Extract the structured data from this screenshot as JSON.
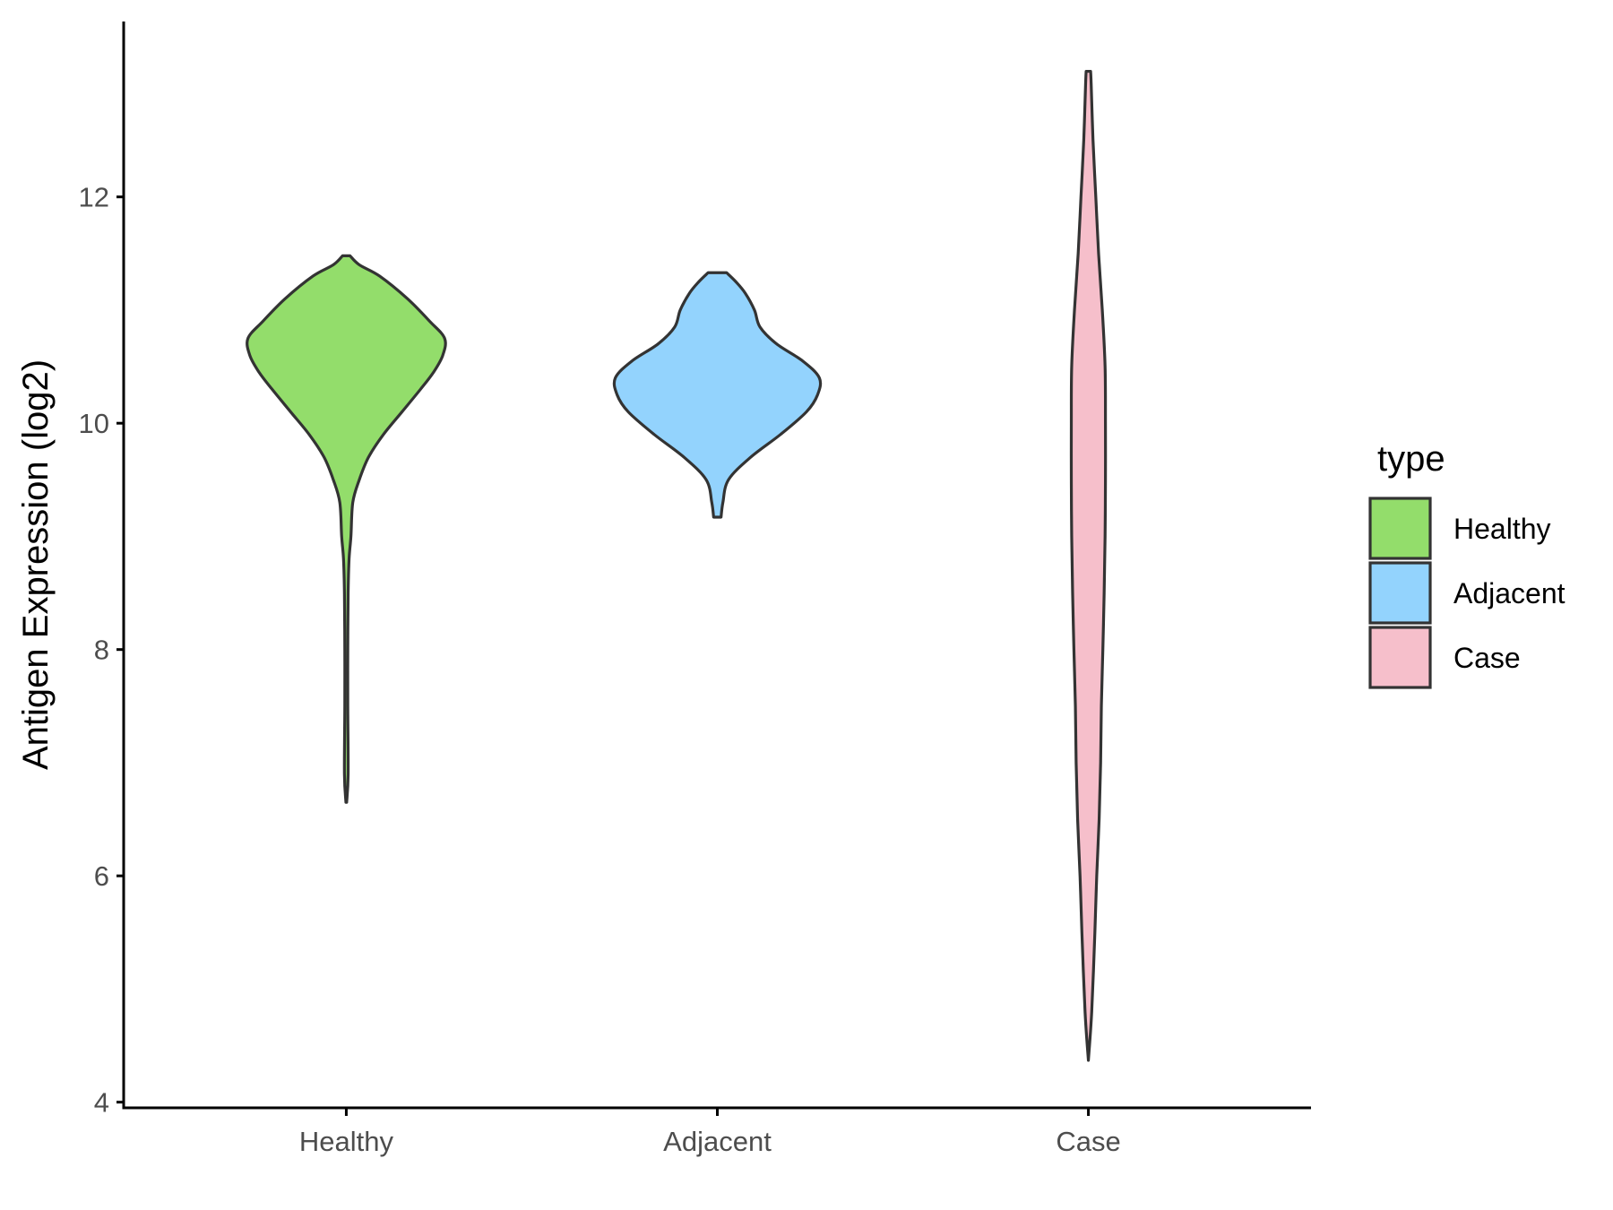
{
  "chart_data": {
    "type": "violin",
    "title": "",
    "xlabel": "",
    "ylabel": "Antigen Expression (log2)",
    "ylim": [
      3.95,
      13.55
    ],
    "yticks": [
      4,
      6,
      8,
      10,
      12
    ],
    "grid": false,
    "legend": {
      "title": "type",
      "position": "right",
      "entries": [
        {
          "label": "Healthy",
          "color": "#93dd6b"
        },
        {
          "label": "Adjacent",
          "color": "#93d3fd"
        },
        {
          "label": "Case",
          "color": "#f6bfcb"
        }
      ]
    },
    "categories": [
      "Healthy",
      "Adjacent",
      "Case"
    ],
    "series": [
      {
        "category": "Healthy",
        "color": "#93dd6b",
        "min": 6.65,
        "max": 11.48,
        "density_halfwidth": [
          [
            6.65,
            0.002
          ],
          [
            6.9,
            0.01
          ],
          [
            7.5,
            0.008
          ],
          [
            8.0,
            0.008
          ],
          [
            8.5,
            0.01
          ],
          [
            8.8,
            0.015
          ],
          [
            9.0,
            0.025
          ],
          [
            9.3,
            0.035
          ],
          [
            9.5,
            0.07
          ],
          [
            9.7,
            0.12
          ],
          [
            9.9,
            0.2
          ],
          [
            10.1,
            0.3
          ],
          [
            10.3,
            0.4
          ],
          [
            10.45,
            0.47
          ],
          [
            10.6,
            0.52
          ],
          [
            10.75,
            0.53
          ],
          [
            10.9,
            0.45
          ],
          [
            11.1,
            0.33
          ],
          [
            11.3,
            0.18
          ],
          [
            11.4,
            0.07
          ],
          [
            11.48,
            0.02
          ]
        ]
      },
      {
        "category": "Adjacent",
        "color": "#93d3fd",
        "min": 9.17,
        "max": 11.33,
        "density_halfwidth": [
          [
            9.17,
            0.02
          ],
          [
            9.3,
            0.03
          ],
          [
            9.5,
            0.06
          ],
          [
            9.7,
            0.18
          ],
          [
            9.9,
            0.34
          ],
          [
            10.1,
            0.48
          ],
          [
            10.25,
            0.54
          ],
          [
            10.4,
            0.55
          ],
          [
            10.55,
            0.46
          ],
          [
            10.7,
            0.32
          ],
          [
            10.85,
            0.23
          ],
          [
            11.0,
            0.2
          ],
          [
            11.15,
            0.15
          ],
          [
            11.25,
            0.1
          ],
          [
            11.33,
            0.05
          ]
        ]
      },
      {
        "category": "Case",
        "color": "#f6bfcb",
        "min": 4.37,
        "max": 13.11,
        "density_halfwidth": [
          [
            4.37,
            0.0
          ],
          [
            4.8,
            0.018
          ],
          [
            5.5,
            0.035
          ],
          [
            6.0,
            0.045
          ],
          [
            6.5,
            0.058
          ],
          [
            7.0,
            0.066
          ],
          [
            7.5,
            0.07
          ],
          [
            8.0,
            0.078
          ],
          [
            8.5,
            0.085
          ],
          [
            9.0,
            0.09
          ],
          [
            9.5,
            0.092
          ],
          [
            10.0,
            0.092
          ],
          [
            10.5,
            0.09
          ],
          [
            11.0,
            0.075
          ],
          [
            11.5,
            0.055
          ],
          [
            12.0,
            0.04
          ],
          [
            12.5,
            0.025
          ],
          [
            13.0,
            0.015
          ],
          [
            13.11,
            0.012
          ]
        ]
      }
    ]
  }
}
